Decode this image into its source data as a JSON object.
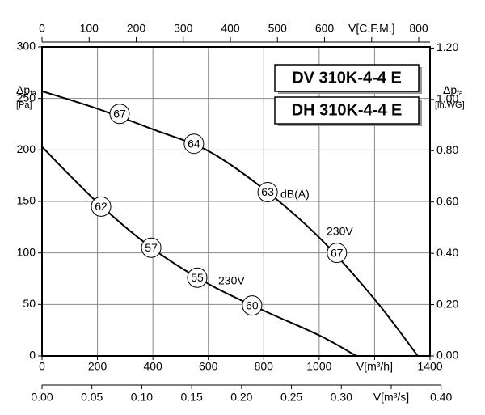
{
  "chart_data": {
    "type": "line",
    "titles": [
      "DV 310K-4-4 E",
      "DH 310K-4-4 E"
    ],
    "y_label": {
      "main": "Δp",
      "sub": "fa",
      "unit": "[Pa]"
    },
    "y2_label": {
      "main": "Δp",
      "sub": "fa",
      "unit": "[in.WG]"
    },
    "xlim": [
      0,
      1400
    ],
    "xticks": [
      0,
      200,
      400,
      600,
      800,
      1000,
      {
        "value": 1200,
        "label": "V[m³/h]"
      },
      1400
    ],
    "x_top_lim": [
      0,
      824
    ],
    "x_top_ticks": [
      0,
      100,
      200,
      300,
      400,
      500,
      600,
      {
        "value": 700,
        "label": "V[C.F.M.]"
      },
      800
    ],
    "x_bottom2_lim": [
      0,
      0.3889
    ],
    "x_bottom2_ticks": [
      {
        "value": 0,
        "label": "0.00"
      },
      {
        "value": 0.05,
        "label": "0.05"
      },
      {
        "value": 0.1,
        "label": "0.10"
      },
      {
        "value": 0.15,
        "label": "0.15"
      },
      {
        "value": 0.2,
        "label": "0.20"
      },
      {
        "value": 0.25,
        "label": "0.25"
      },
      {
        "value": 0.3,
        "label": "0.30"
      },
      {
        "value": 0.35,
        "label": "V[m³/s]"
      },
      {
        "value": 0.4,
        "label": "0.40"
      }
    ],
    "ylim": [
      0,
      300
    ],
    "yticks": [
      0,
      50,
      100,
      150,
      200,
      250,
      300
    ],
    "y2lim": [
      0,
      1.2044
    ],
    "y2ticks": [
      {
        "value": 0,
        "label": "0.00"
      },
      {
        "value": 0.2,
        "label": "0.20"
      },
      {
        "value": 0.4,
        "label": "0.40"
      },
      {
        "value": 0.6,
        "label": "0.60"
      },
      {
        "value": 0.8,
        "label": "0.80"
      },
      {
        "value": 1,
        "label": "1.00"
      },
      {
        "value": 1.2,
        "label": "1.20"
      }
    ],
    "grid": true,
    "series": [
      {
        "color": "#000000",
        "x": [
          0,
          200,
          400,
          600,
          800,
          1000,
          1200,
          1356
        ],
        "values": [
          257,
          240,
          220,
          199,
          162,
          115,
          55,
          0
        ]
      },
      {
        "color": "#000000",
        "x": [
          0,
          200,
          400,
          600,
          800,
          1000,
          1134
        ],
        "values": [
          203,
          149,
          104,
          70,
          44,
          20,
          0
        ]
      }
    ],
    "markers": [
      {
        "x": 280,
        "y": 235,
        "db": 67
      },
      {
        "x": 548,
        "y": 206,
        "db": 64
      },
      {
        "x": 814,
        "y": 159,
        "db": 63
      },
      {
        "x": 1064,
        "y": 100,
        "db": 67
      },
      {
        "x": 213,
        "y": 145,
        "db": 62
      },
      {
        "x": 394,
        "y": 105,
        "db": 57
      },
      {
        "x": 560,
        "y": 76,
        "db": 55
      },
      {
        "x": 758,
        "y": 49,
        "db": 60
      }
    ],
    "annotations": [
      "dB(A)",
      "230V",
      "230V"
    ]
  }
}
